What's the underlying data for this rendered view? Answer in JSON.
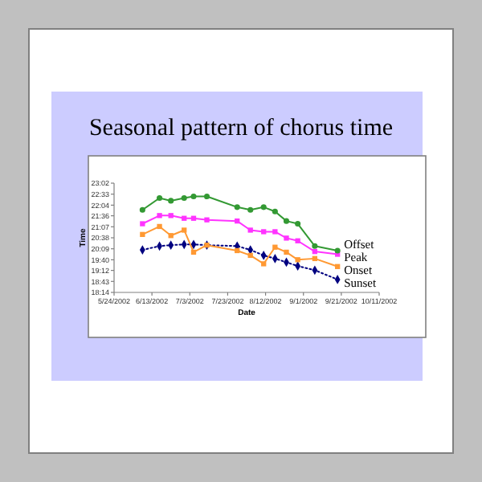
{
  "chart_data": {
    "type": "line",
    "title": "Seasonal pattern of chorus time",
    "xlabel": "Date",
    "ylabel": "Time",
    "grid": false,
    "xlim": [
      "2002-05-24",
      "2002-10-11"
    ],
    "xticks": [
      {
        "value": "2002-05-24",
        "label": "5/24/2002"
      },
      {
        "value": "2002-06-13",
        "label": "6/13/2002"
      },
      {
        "value": "2002-07-03",
        "label": "7/3/2002"
      },
      {
        "value": "2002-07-23",
        "label": "7/23/2002"
      },
      {
        "value": "2002-08-12",
        "label": "8/12/2002"
      },
      {
        "value": "2002-09-01",
        "label": "9/1/2002"
      },
      {
        "value": "2002-09-21",
        "label": "9/21/2002"
      },
      {
        "value": "2002-10-11",
        "label": "10/11/2002"
      }
    ],
    "ylim": [
      18.2333,
      23.0333
    ],
    "yticks": [
      {
        "value": 18.2333,
        "label": "18:14"
      },
      {
        "value": 18.7167,
        "label": "18:43"
      },
      {
        "value": 19.2,
        "label": "19:12"
      },
      {
        "value": 19.6667,
        "label": "19:40"
      },
      {
        "value": 20.15,
        "label": "20:09"
      },
      {
        "value": 20.6333,
        "label": "20:38"
      },
      {
        "value": 21.1167,
        "label": "21:07"
      },
      {
        "value": 21.6,
        "label": "21:36"
      },
      {
        "value": 22.0667,
        "label": "22:04"
      },
      {
        "value": 22.55,
        "label": "22:33"
      },
      {
        "value": 23.0333,
        "label": "23:02"
      }
    ],
    "series": [
      {
        "name": "Offset",
        "color": "#339933",
        "marker": "circle",
        "line_style": "solid",
        "x": [
          "2002-06-08",
          "2002-06-17",
          "2002-06-23",
          "2002-06-30",
          "2002-07-05",
          "2002-07-12",
          "2002-07-28",
          "2002-08-04",
          "2002-08-11",
          "2002-08-17",
          "2002-08-23",
          "2002-08-29",
          "2002-09-07",
          "2002-09-19"
        ],
        "values": [
          21.86,
          22.38,
          22.26,
          22.38,
          22.45,
          22.45,
          21.98,
          21.86,
          21.98,
          21.79,
          21.37,
          21.25,
          20.27,
          20.07
        ]
      },
      {
        "name": "Peak",
        "color": "#ff33ff",
        "marker": "square",
        "line_style": "solid",
        "x": [
          "2002-06-08",
          "2002-06-17",
          "2002-06-23",
          "2002-06-30",
          "2002-07-05",
          "2002-07-12",
          "2002-07-28",
          "2002-08-04",
          "2002-08-11",
          "2002-08-17",
          "2002-08-23",
          "2002-08-29",
          "2002-09-07",
          "2002-09-19"
        ],
        "values": [
          21.25,
          21.61,
          21.61,
          21.49,
          21.49,
          21.42,
          21.37,
          20.97,
          20.9,
          20.9,
          20.62,
          20.5,
          20.03,
          19.91
        ]
      },
      {
        "name": "Onset",
        "color": "#ff9933",
        "marker": "square",
        "line_style": "solid",
        "x": [
          "2002-06-08",
          "2002-06-17",
          "2002-06-23",
          "2002-06-30",
          "2002-07-05",
          "2002-07-12",
          "2002-07-28",
          "2002-08-04",
          "2002-08-11",
          "2002-08-17",
          "2002-08-23",
          "2002-08-29",
          "2002-09-07",
          "2002-09-19"
        ],
        "values": [
          20.78,
          21.13,
          20.73,
          20.97,
          20.0,
          20.31,
          20.07,
          19.86,
          19.49,
          20.22,
          20.0,
          19.67,
          19.72,
          19.37
        ]
      },
      {
        "name": "Sunset",
        "color": "#000080",
        "marker": "diamond",
        "line_style": "dotted",
        "x": [
          "2002-06-08",
          "2002-06-17",
          "2002-06-23",
          "2002-06-30",
          "2002-07-05",
          "2002-07-12",
          "2002-07-28",
          "2002-08-04",
          "2002-08-11",
          "2002-08-17",
          "2002-08-23",
          "2002-08-29",
          "2002-09-07",
          "2002-09-19"
        ],
        "values": [
          20.1,
          20.27,
          20.31,
          20.34,
          20.34,
          20.31,
          20.27,
          20.1,
          19.86,
          19.72,
          19.56,
          19.39,
          19.21,
          18.8
        ]
      }
    ]
  }
}
